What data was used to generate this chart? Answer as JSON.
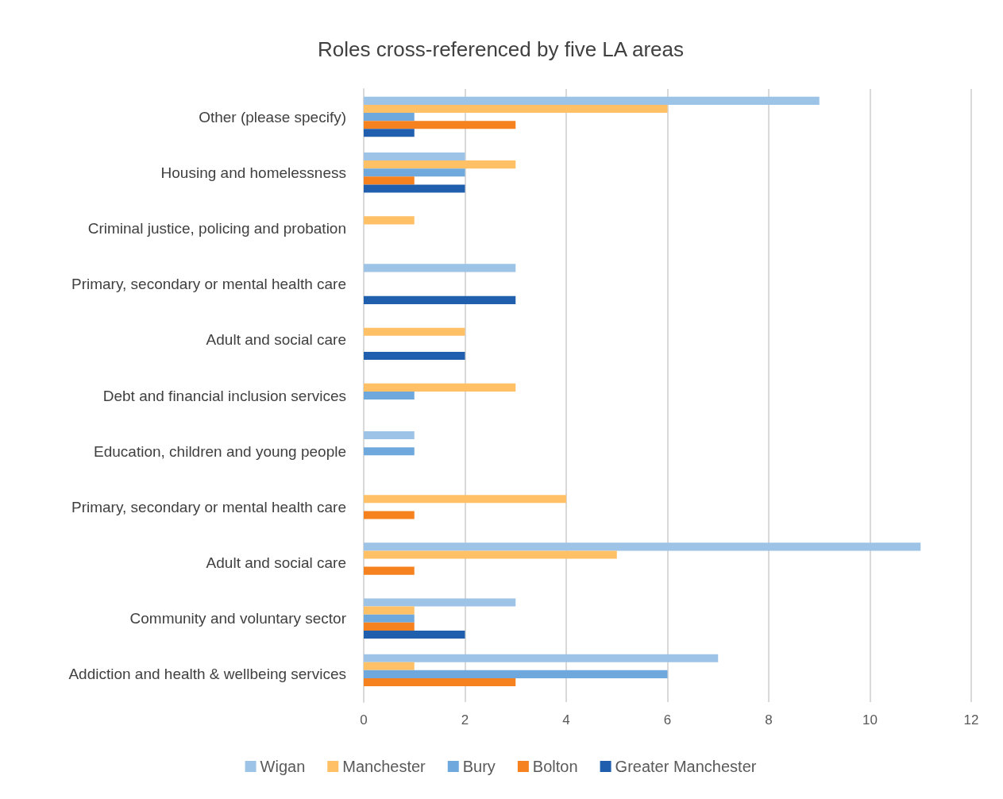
{
  "chart_data": {
    "type": "bar",
    "orientation": "horizontal",
    "title": "Roles cross-referenced by five LA areas",
    "categories": [
      "Other (please specify)",
      "Housing and homelessness",
      "Criminal justice, policing and probation",
      "Primary, secondary or mental health care",
      "Adult and social care",
      "Debt and financial inclusion services",
      "Education, children and young people",
      "Primary, secondary or mental health care",
      "Adult and social care",
      "Community and voluntary sector",
      "Addiction and health & wellbeing services"
    ],
    "series": [
      {
        "name": "Wigan",
        "color": "#9dc3e6",
        "values": [
          9,
          2,
          0,
          3,
          0,
          0,
          1,
          0,
          11,
          3,
          7
        ]
      },
      {
        "name": "Manchester",
        "color": "#ffc066",
        "values": [
          6,
          3,
          1,
          0,
          2,
          3,
          0,
          4,
          5,
          1,
          1
        ]
      },
      {
        "name": "Bury",
        "color": "#6fa8dc",
        "values": [
          1,
          2,
          0,
          0,
          0,
          1,
          1,
          0,
          0,
          1,
          6
        ]
      },
      {
        "name": "Bolton",
        "color": "#f5821f",
        "values": [
          3,
          1,
          0,
          0,
          0,
          0,
          0,
          1,
          1,
          1,
          3
        ]
      },
      {
        "name": "Greater Manchester",
        "color": "#1f5fad",
        "values": [
          1,
          2,
          0,
          3,
          2,
          0,
          0,
          0,
          0,
          2,
          0
        ]
      }
    ],
    "xlim": [
      0,
      12
    ],
    "xticks": [
      0,
      2,
      4,
      6,
      8,
      10,
      12
    ],
    "grid": "x",
    "legend": "bottom"
  }
}
